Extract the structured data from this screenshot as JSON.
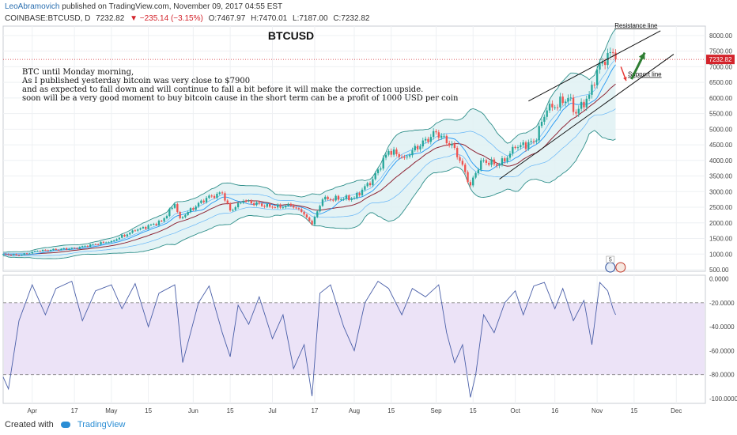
{
  "header": {
    "author": "LeoAbramovich",
    "published_text": "published on TradingView.com, November 09, 2017 04:55 EST",
    "symbol_line": "COINBASE:BTCUSD, D",
    "last": "7232.82",
    "change": "▼ −235.14 (−3.15%)",
    "open": "O:7467.97",
    "high": "H:7470.01",
    "low": "L:7187.00",
    "close": "C:7232.82"
  },
  "footer": {
    "created_with": "Created with",
    "brand": "TradingView"
  },
  "colors": {
    "up": "#26a69a",
    "down": "#ef5350",
    "band": "#2f8f8a",
    "band_fill": "#dff1f3",
    "ma_fast": "#2196f3",
    "ma_slow": "#8e2434",
    "rsi": "#4a5fa8",
    "rsi_zone": "#ece3f7",
    "price_tag": "#d3232b",
    "arrow_up": "#2e7d32",
    "arrow_down": "#e53935"
  },
  "chart_data": [
    {
      "type": "candlestick",
      "title": "BTCUSD",
      "annotation": "BTC until Monday morning,\nAs I published yesterday bitcoin was very close to $7900\nand as expected to fall down and will continue to fall a bit before it will make the correction upside.\nsoon will be a very good moment to buy bitcoin cause in the short term can be a profit of 1000 USD per coin",
      "last_price_label": "7232.82",
      "y_ticks": [
        500,
        1000,
        1500,
        2000,
        2500,
        3000,
        3500,
        4000,
        4500,
        5000,
        5500,
        6000,
        6500,
        7000,
        7500,
        8000
      ],
      "y_tick_labels": [
        "500.00",
        "1000.00",
        "1500.00",
        "2000.00",
        "2500.00",
        "3000.00",
        "3500.00",
        "4000.00",
        "4500.00",
        "5000.00",
        "5500.00",
        "6000.00",
        "6500.00",
        "7000.00",
        "7500.00",
        "8000.00"
      ],
      "ylim": [
        450,
        8300
      ],
      "x_ticks": [
        "2017-04-01",
        "2017-04-17",
        "2017-05-01",
        "2017-05-15",
        "2017-06-01",
        "2017-06-15",
        "2017-07-01",
        "2017-07-17",
        "2017-08-01",
        "2017-08-15",
        "2017-09-01",
        "2017-09-15",
        "2017-10-01",
        "2017-10-16",
        "2017-11-01",
        "2017-11-15",
        "2017-12-01"
      ],
      "x_tick_labels": [
        "Apr",
        "17",
        "May",
        "15",
        "Jun",
        "15",
        "Jul",
        "17",
        "Aug",
        "15",
        "Sep",
        "15",
        "Oct",
        "16",
        "Nov",
        "15",
        "Dec"
      ],
      "xlim": [
        "2017-03-21",
        "2017-12-12"
      ],
      "close_keypoints": [
        [
          "2017-03-21",
          1000
        ],
        [
          "2017-03-27",
          960
        ],
        [
          "2017-04-03",
          1100
        ],
        [
          "2017-04-17",
          1190
        ],
        [
          "2017-05-01",
          1420
        ],
        [
          "2017-05-10",
          1750
        ],
        [
          "2017-05-20",
          2050
        ],
        [
          "2017-05-25",
          2600
        ],
        [
          "2017-05-27",
          2150
        ],
        [
          "2017-06-06",
          2800
        ],
        [
          "2017-06-12",
          2950
        ],
        [
          "2017-06-15",
          2400
        ],
        [
          "2017-06-20",
          2700
        ],
        [
          "2017-07-01",
          2500
        ],
        [
          "2017-07-08",
          2550
        ],
        [
          "2017-07-12",
          2350
        ],
        [
          "2017-07-16",
          1950
        ],
        [
          "2017-07-20",
          2750
        ],
        [
          "2017-08-01",
          2800
        ],
        [
          "2017-08-08",
          3400
        ],
        [
          "2017-08-14",
          4300
        ],
        [
          "2017-08-20",
          4100
        ],
        [
          "2017-09-01",
          4900
        ],
        [
          "2017-09-08",
          4400
        ],
        [
          "2017-09-14",
          3200
        ],
        [
          "2017-09-18",
          4000
        ],
        [
          "2017-09-25",
          3850
        ],
        [
          "2017-10-01",
          4400
        ],
        [
          "2017-10-08",
          4600
        ],
        [
          "2017-10-13",
          5600
        ],
        [
          "2017-10-21",
          6000
        ],
        [
          "2017-10-24",
          5500
        ],
        [
          "2017-10-29",
          6100
        ],
        [
          "2017-11-02",
          7100
        ],
        [
          "2017-11-07",
          7450
        ],
        [
          "2017-11-08",
          7232.82
        ]
      ],
      "lines": [
        {
          "name": "Resistance line",
          "from": [
            "2017-10-06",
            5900
          ],
          "to": [
            "2017-11-25",
            8150
          ]
        },
        {
          "name": "Support line",
          "from": [
            "2017-09-25",
            3400
          ],
          "to": [
            "2017-11-30",
            7400
          ]
        }
      ],
      "arrows": [
        {
          "direction": "down",
          "from": [
            "2017-11-10",
            7000
          ],
          "to": [
            "2017-11-12",
            6550
          ]
        },
        {
          "direction": "up",
          "from": [
            "2017-11-14",
            6600
          ],
          "to": [
            "2017-11-19",
            7450
          ]
        }
      ],
      "currency_badge_count": "5"
    },
    {
      "type": "line",
      "title": "",
      "y_ticks": [
        0,
        -20,
        -40,
        -60,
        -80,
        -100
      ],
      "y_tick_labels": [
        "0.0000",
        "-20.0000",
        "-40.0000",
        "-60.0000",
        "-80.0000",
        "-100.0000"
      ],
      "ylim": [
        -104,
        3
      ],
      "zone": [
        -80,
        -20
      ],
      "keypoints": [
        [
          "2017-03-21",
          -82
        ],
        [
          "2017-03-23",
          -92
        ],
        [
          "2017-03-27",
          -35
        ],
        [
          "2017-04-01",
          -5
        ],
        [
          "2017-04-06",
          -30
        ],
        [
          "2017-04-10",
          -8
        ],
        [
          "2017-04-16",
          -2
        ],
        [
          "2017-04-20",
          -35
        ],
        [
          "2017-04-25",
          -10
        ],
        [
          "2017-05-01",
          -5
        ],
        [
          "2017-05-05",
          -25
        ],
        [
          "2017-05-10",
          -4
        ],
        [
          "2017-05-15",
          -40
        ],
        [
          "2017-05-19",
          -12
        ],
        [
          "2017-05-25",
          -5
        ],
        [
          "2017-05-28",
          -70
        ],
        [
          "2017-06-03",
          -20
        ],
        [
          "2017-06-07",
          -6
        ],
        [
          "2017-06-12",
          -45
        ],
        [
          "2017-06-15",
          -65
        ],
        [
          "2017-06-18",
          -22
        ],
        [
          "2017-06-22",
          -38
        ],
        [
          "2017-06-26",
          -15
        ],
        [
          "2017-07-01",
          -50
        ],
        [
          "2017-07-05",
          -30
        ],
        [
          "2017-07-09",
          -75
        ],
        [
          "2017-07-13",
          -55
        ],
        [
          "2017-07-16",
          -98
        ],
        [
          "2017-07-19",
          -12
        ],
        [
          "2017-07-23",
          -5
        ],
        [
          "2017-07-28",
          -40
        ],
        [
          "2017-08-01",
          -60
        ],
        [
          "2017-08-05",
          -20
        ],
        [
          "2017-08-10",
          -2
        ],
        [
          "2017-08-14",
          -8
        ],
        [
          "2017-08-19",
          -30
        ],
        [
          "2017-08-23",
          -8
        ],
        [
          "2017-08-28",
          -15
        ],
        [
          "2017-09-02",
          -5
        ],
        [
          "2017-09-05",
          -45
        ],
        [
          "2017-09-08",
          -70
        ],
        [
          "2017-09-11",
          -55
        ],
        [
          "2017-09-14",
          -99
        ],
        [
          "2017-09-16",
          -80
        ],
        [
          "2017-09-19",
          -30
        ],
        [
          "2017-09-23",
          -45
        ],
        [
          "2017-09-27",
          -20
        ],
        [
          "2017-10-01",
          -10
        ],
        [
          "2017-10-04",
          -30
        ],
        [
          "2017-10-08",
          -6
        ],
        [
          "2017-10-12",
          -3
        ],
        [
          "2017-10-16",
          -25
        ],
        [
          "2017-10-19",
          -8
        ],
        [
          "2017-10-23",
          -35
        ],
        [
          "2017-10-27",
          -18
        ],
        [
          "2017-10-30",
          -55
        ],
        [
          "2017-11-02",
          -3
        ],
        [
          "2017-11-05",
          -10
        ],
        [
          "2017-11-07",
          -25
        ],
        [
          "2017-11-08",
          -30
        ]
      ]
    }
  ]
}
